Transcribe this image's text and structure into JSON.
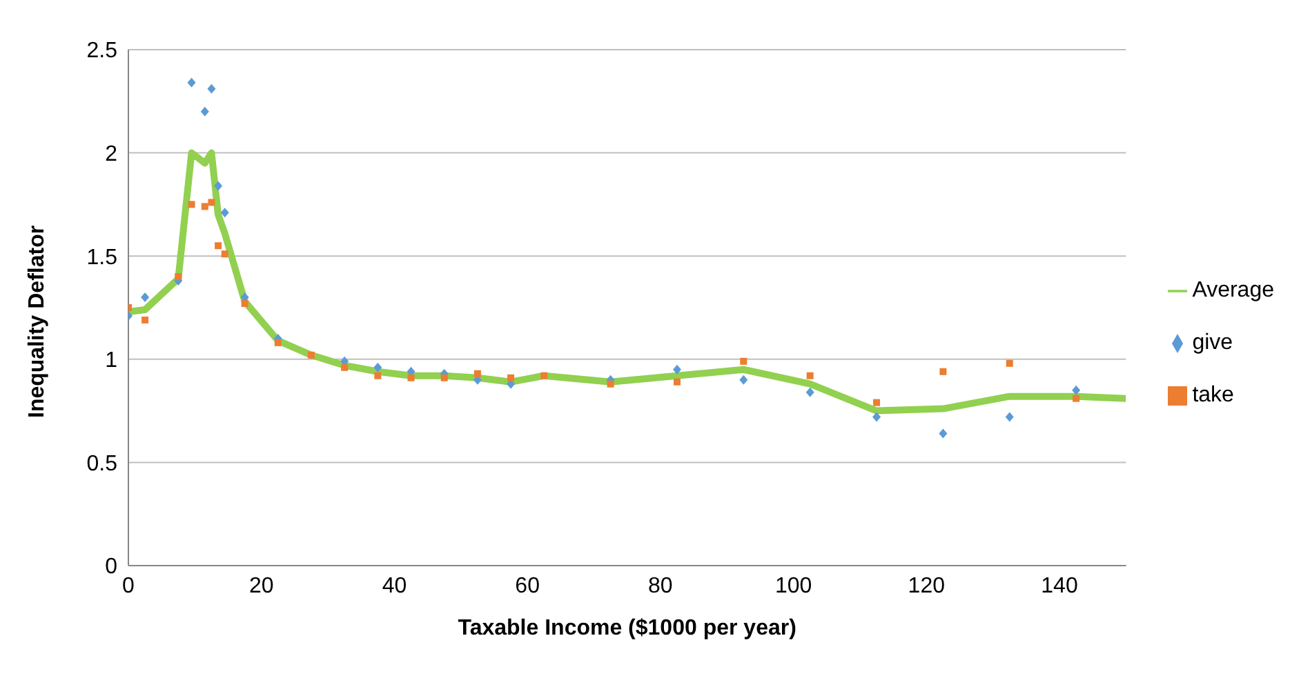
{
  "chart_data": {
    "type": "scatter",
    "xlabel": "Taxable Income ($1000 per year)",
    "ylabel": "Inequality Deflator",
    "x": [
      0,
      2.5,
      7.5,
      9.5,
      11.5,
      12.5,
      13.5,
      14.5,
      17.5,
      22.5,
      27.5,
      32.5,
      37.5,
      42.5,
      47.5,
      52.5,
      57.5,
      62.5,
      72.5,
      82.5,
      92.5,
      102.5,
      112.5,
      122.5,
      132.5,
      142.5
    ],
    "series": [
      {
        "name": "give",
        "color": "#5b9bd5",
        "marker": "diamond",
        "values": [
          1.21,
          1.3,
          1.38,
          2.34,
          2.2,
          2.31,
          1.84,
          1.71,
          1.3,
          1.1,
          null,
          0.99,
          0.96,
          0.94,
          0.93,
          0.9,
          0.88,
          null,
          0.9,
          0.95,
          0.9,
          0.84,
          0.72,
          0.64,
          0.72,
          0.85
        ]
      },
      {
        "name": "take",
        "color": "#ed7d31",
        "marker": "square",
        "values": [
          1.25,
          1.19,
          1.4,
          1.75,
          1.74,
          1.76,
          1.55,
          1.51,
          1.27,
          1.08,
          1.02,
          0.96,
          0.92,
          0.91,
          0.91,
          0.93,
          0.91,
          0.92,
          0.88,
          0.89,
          0.99,
          0.92,
          0.79,
          0.94,
          0.98,
          0.81
        ]
      },
      {
        "name": "Average",
        "type": "line",
        "color": "#92d050",
        "marker": "none",
        "x": [
          0,
          2.5,
          7.5,
          9.5,
          11.5,
          12.5,
          13.5,
          14.5,
          17.5,
          22.5,
          27.5,
          32.5,
          37.5,
          42.5,
          47.5,
          52.5,
          57.5,
          62.5,
          72.5,
          82.5,
          92.5,
          102.5,
          112.5,
          122.5,
          132.5,
          142.5,
          150
        ],
        "values": [
          1.23,
          1.24,
          1.39,
          2.0,
          1.95,
          2.0,
          1.7,
          1.61,
          1.28,
          1.09,
          1.02,
          0.97,
          0.94,
          0.92,
          0.92,
          0.91,
          0.89,
          0.92,
          0.89,
          0.92,
          0.95,
          0.88,
          0.75,
          0.76,
          0.82,
          0.82,
          0.81
        ]
      }
    ],
    "xlim": [
      0,
      150
    ],
    "xticks": [
      0,
      20,
      40,
      60,
      80,
      100,
      120,
      140
    ],
    "ylim": [
      0,
      2.5
    ],
    "yticks": [
      0,
      0.5,
      1,
      1.5,
      2,
      2.5
    ],
    "grid": "y",
    "legend": "right"
  }
}
